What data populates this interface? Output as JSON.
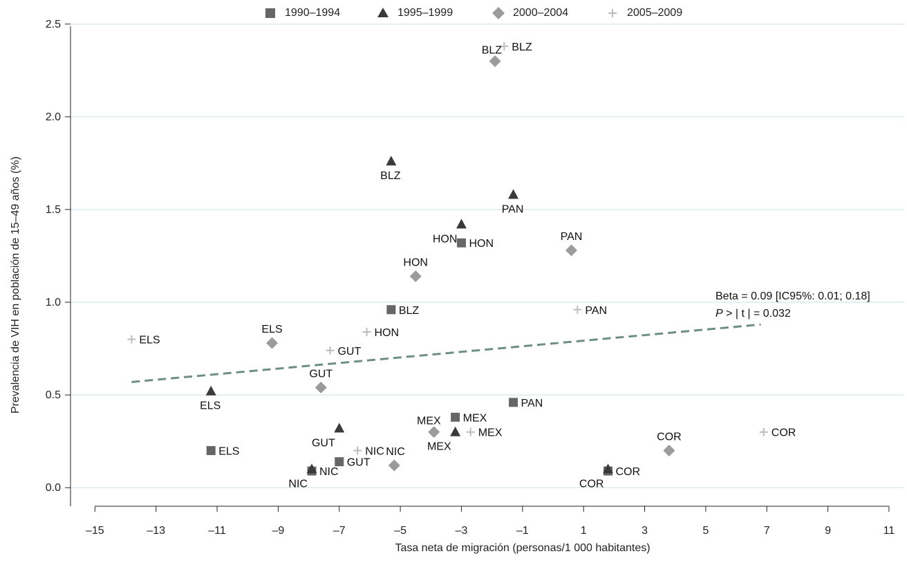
{
  "legend": [
    {
      "label": "1990–1994",
      "marker": "square",
      "color": "#666666"
    },
    {
      "label": "1995–1999",
      "marker": "triangle",
      "color": "#3a3a3a"
    },
    {
      "label": "2000–2004",
      "marker": "diamond",
      "color": "#9b9b9b"
    },
    {
      "label": "2005–2009",
      "marker": "plus",
      "color": "#bcbcbc"
    }
  ],
  "annotation": {
    "beta": "Beta = 0.09 [IC95%: 0.01; 0.18]",
    "p_italic": "P",
    "p_rest": " > | t | = 0.032"
  },
  "chart_data": {
    "type": "scatter",
    "title": "",
    "xlabel": "Tasa neta de migración (personas/1 000 habitantes)",
    "ylabel": "Prevalencia de VIH en población de 15–49 años (%)",
    "xlim": [
      -15.8,
      11.5
    ],
    "ylim": [
      -0.1,
      2.6
    ],
    "xticks": [
      -15,
      -13,
      -11,
      -9,
      -7,
      -5,
      -3,
      -1,
      1,
      3,
      5,
      7,
      9,
      11
    ],
    "xtick_labels": [
      "–15",
      "–13",
      "–11",
      "–9",
      "–7",
      "–5",
      "–3",
      "–1",
      "1",
      "3",
      "5",
      "7",
      "9",
      "11"
    ],
    "yticks": [
      0.0,
      0.5,
      1.0,
      1.5,
      2.0,
      2.5
    ],
    "ytick_labels": [
      "0.0",
      "0.5",
      "1.0",
      "1.5",
      "2.0",
      "2.5"
    ],
    "grid": "horizontal",
    "legend_position": "top",
    "series": [
      {
        "name": "1990–1994",
        "marker": "square",
        "color": "#666666",
        "points": [
          {
            "x": -11.2,
            "y": 0.2,
            "label": "ELS",
            "pos": "right"
          },
          {
            "x": -7.9,
            "y": 0.09,
            "label": "NIC",
            "pos": "right"
          },
          {
            "x": -7.0,
            "y": 0.14,
            "label": "GUT",
            "pos": "right"
          },
          {
            "x": -5.3,
            "y": 0.96,
            "label": "BLZ",
            "pos": "right"
          },
          {
            "x": -3.2,
            "y": 0.38,
            "label": "MEX",
            "pos": "right"
          },
          {
            "x": -3.0,
            "y": 1.32,
            "label": "HON",
            "pos": "right"
          },
          {
            "x": -1.3,
            "y": 0.46,
            "label": "PAN",
            "pos": "right"
          },
          {
            "x": 1.8,
            "y": 0.09,
            "label": "COR",
            "pos": "right"
          }
        ]
      },
      {
        "name": "1995–1999",
        "marker": "triangle",
        "color": "#3a3a3a",
        "points": [
          {
            "x": -11.2,
            "y": 0.52,
            "label": "ELS",
            "pos": "below"
          },
          {
            "x": -7.9,
            "y": 0.1,
            "label": "NIC",
            "pos": "belowleft"
          },
          {
            "x": -7.0,
            "y": 0.32,
            "label": "GUT",
            "pos": "belowleft"
          },
          {
            "x": -5.3,
            "y": 1.76,
            "label": "BLZ",
            "pos": "below"
          },
          {
            "x": -3.2,
            "y": 0.3,
            "label": "MEX",
            "pos": "belowleft"
          },
          {
            "x": -3.0,
            "y": 1.42,
            "label": "HON",
            "pos": "belowleft"
          },
          {
            "x": -1.3,
            "y": 1.58,
            "label": "PAN",
            "pos": "below"
          },
          {
            "x": 1.8,
            "y": 0.1,
            "label": "COR",
            "pos": "belowleft"
          }
        ]
      },
      {
        "name": "2000–2004",
        "marker": "diamond",
        "color": "#9b9b9b",
        "points": [
          {
            "x": -9.2,
            "y": 0.78,
            "label": "ELS",
            "pos": "above"
          },
          {
            "x": -7.6,
            "y": 0.54,
            "label": "GUT",
            "pos": "above"
          },
          {
            "x": -5.2,
            "y": 0.12,
            "label": "NIC",
            "pos": "aboveright"
          },
          {
            "x": -4.5,
            "y": 1.14,
            "label": "HON",
            "pos": "above"
          },
          {
            "x": -3.9,
            "y": 0.3,
            "label": "MEX",
            "pos": "aboveleft"
          },
          {
            "x": -1.9,
            "y": 2.3,
            "label": "BLZ",
            "pos": "aboveleft"
          },
          {
            "x": 0.6,
            "y": 1.28,
            "label": "PAN",
            "pos": "above"
          },
          {
            "x": 3.8,
            "y": 0.2,
            "label": "COR",
            "pos": "above"
          }
        ]
      },
      {
        "name": "2005–2009",
        "marker": "plus",
        "color": "#bcbcbc",
        "points": [
          {
            "x": -13.8,
            "y": 0.8,
            "label": "ELS",
            "pos": "right"
          },
          {
            "x": -7.3,
            "y": 0.74,
            "label": "GUT",
            "pos": "right"
          },
          {
            "x": -6.1,
            "y": 0.84,
            "label": "HON",
            "pos": "right"
          },
          {
            "x": -6.4,
            "y": 0.2,
            "label": "NIC",
            "pos": "right"
          },
          {
            "x": -2.7,
            "y": 0.3,
            "label": "MEX",
            "pos": "right"
          },
          {
            "x": -1.6,
            "y": 2.38,
            "label": "BLZ",
            "pos": "right"
          },
          {
            "x": 0.8,
            "y": 0.96,
            "label": "PAN",
            "pos": "right"
          },
          {
            "x": 6.9,
            "y": 0.3,
            "label": "COR",
            "pos": "right"
          }
        ]
      }
    ],
    "trend_line": {
      "x": [
        -13.8,
        6.8
      ],
      "y": [
        0.57,
        0.88
      ],
      "color": "#6d8f83",
      "style": "dashed"
    }
  }
}
